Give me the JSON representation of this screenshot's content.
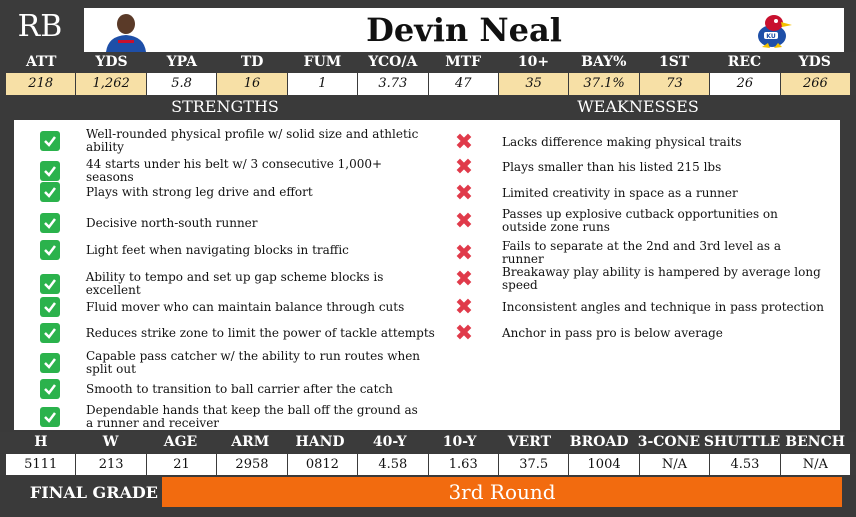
{
  "player": {
    "position": "RB",
    "name": "Devin Neal",
    "headshot_icon": "player-headshot",
    "logo_icon": "jayhawk-logo"
  },
  "stats": {
    "headers": [
      "ATT",
      "YDS",
      "YPA",
      "TD",
      "FUM",
      "YCO/A",
      "MTF",
      "10+",
      "BAY%",
      "1ST",
      "REC",
      "YDS"
    ],
    "values": [
      "218",
      "1,262",
      "5.8",
      "16",
      "1",
      "3.73",
      "47",
      "35",
      "37.1%",
      "73",
      "26",
      "266"
    ],
    "highlight": [
      true,
      true,
      false,
      true,
      false,
      false,
      false,
      true,
      true,
      true,
      false,
      true
    ]
  },
  "sections": {
    "strengths_title": "STRENGTHS",
    "weaknesses_title": "WEAKNESSES"
  },
  "strengths": [
    "Well-rounded physical profile w/ solid size and athletic ability",
    "44 starts under his belt w/ 3 consecutive 1,000+ seasons",
    "Plays with strong leg drive and effort",
    "Decisive north-south runner",
    "Light feet when navigating blocks in traffic",
    "Ability to tempo and set up gap scheme blocks is excellent",
    "Fluid mover who can maintain balance through cuts",
    "Reduces strike zone to limit the power of tackle attempts",
    "Capable pass catcher w/ the ability to run routes when split out",
    "Smooth to transition to ball carrier after the catch",
    "Dependable hands that keep the ball off the ground as a runner and receiver"
  ],
  "weaknesses": [
    "Lacks difference making physical traits",
    "Plays smaller than his listed 215 lbs",
    "Limited creativity in space as a runner",
    "Passes up explosive cutback opportunities on outside zone runs",
    "Fails to separate at the 2nd and 3rd level as a runner",
    "Breakaway play ability is hampered by average long speed",
    "Inconsistent angles and technique in pass protection",
    "Anchor in pass pro is below average"
  ],
  "measurables": {
    "headers": [
      "H",
      "W",
      "AGE",
      "ARM",
      "HAND",
      "40-Y",
      "10-Y",
      "VERT",
      "BROAD",
      "3-CONE",
      "SHUTTLE",
      "BENCH"
    ],
    "values": [
      "5111",
      "213",
      "21",
      "2958",
      "0812",
      "4.58",
      "1.63",
      "37.5",
      "1004",
      "N/A",
      "4.53",
      "N/A"
    ]
  },
  "final": {
    "label": "FINAL GRADE",
    "grade": "3rd Round"
  },
  "colors": {
    "header_bg": "#3b3b3b",
    "highlight_bg": "#f7e0a6",
    "check_green": "#2bb24c",
    "x_red": "#e03a4a",
    "grade_orange": "#f26b0f"
  }
}
